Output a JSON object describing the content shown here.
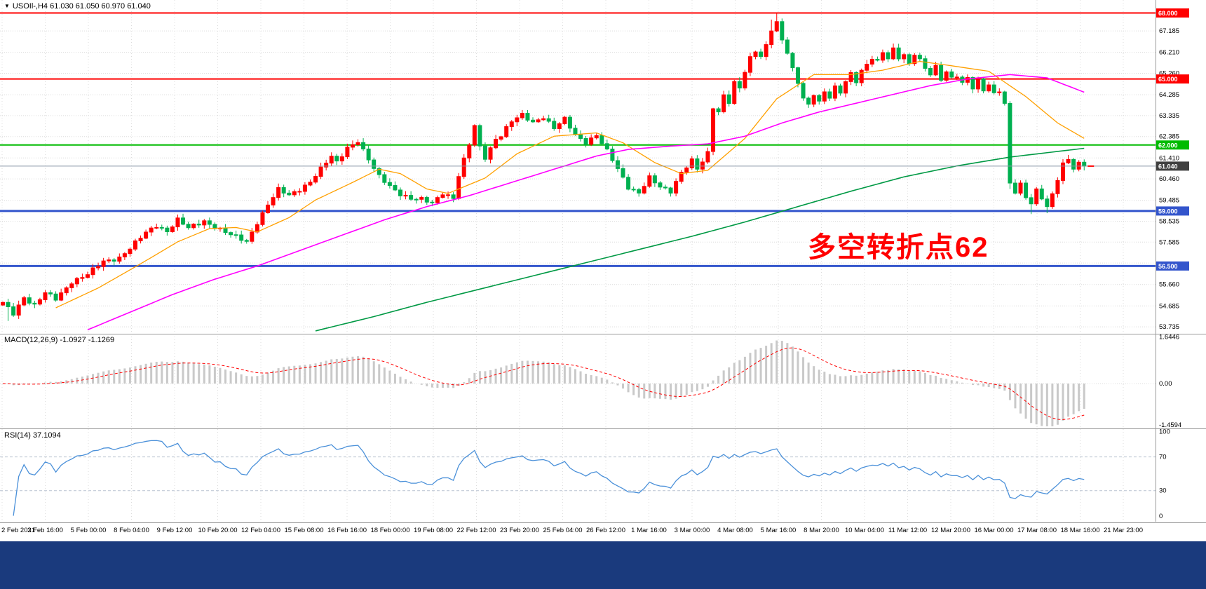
{
  "header": {
    "symbol_info": "USOIl-,H4 61.030 61.050 60.970 61.040"
  },
  "annotation": {
    "text": "多空转折点62"
  },
  "indicators": {
    "macd": {
      "label": "MACD(12,26,9) -1.0927 -1.1269"
    },
    "rsi": {
      "label": "RSI(14) 37.1094"
    }
  },
  "colors": {
    "bull": "#ff0000",
    "bear": "#00b050",
    "ma_fast": "#ffa000",
    "ma_mid": "#ff00ff",
    "ma_slow": "#009944",
    "grid": "#dcdcdc",
    "separator": "#9a9a9a",
    "macd_hist": "#c9c9c9",
    "macd_signal": "#ff0000",
    "rsi_line": "#4a90d9",
    "rsi_level": "#b9c2d0",
    "annotation": "#ff0000",
    "bottom_bar": "#1a3a7d",
    "current_price_bg": "#404040",
    "current_price_line": "#8a98a8"
  },
  "chart_data": [
    {
      "type": "candlestick",
      "title": "USOIl-,H4",
      "current_ohlc": {
        "open": 61.03,
        "high": 61.05,
        "low": 60.97,
        "close": 61.04
      },
      "ylim": [
        53.42,
        68.59
      ],
      "y_grid_prices": [
        67.185,
        66.21,
        65.26,
        64.285,
        63.335,
        62.385,
        61.41,
        60.46,
        59.485,
        58.535,
        57.585,
        56.635,
        55.66,
        54.685,
        53.735
      ],
      "y_tick_labels": [
        "67.185",
        "66.210",
        "65.260",
        "64.285",
        "63.335",
        "62.385",
        "61.410",
        "60.460",
        "59.485",
        "58.535",
        "57.585",
        "55.660",
        "54.685",
        "53.735"
      ],
      "x_ticks": [
        "2 Feb 2021",
        "3 Feb 16:00",
        "5 Feb 00:00",
        "8 Feb 04:00",
        "9 Feb 12:00",
        "10 Feb 20:00",
        "12 Feb 04:00",
        "15 Feb 08:00",
        "16 Feb 16:00",
        "18 Feb 00:00",
        "19 Feb 08:00",
        "22 Feb 12:00",
        "23 Feb 20:00",
        "25 Feb 04:00",
        "26 Feb 12:00",
        "1 Mar 16:00",
        "3 Mar 00:00",
        "4 Mar 08:00",
        "5 Mar 16:00",
        "8 Mar 20:00",
        "10 Mar 04:00",
        "11 Mar 12:00",
        "12 Mar 20:00",
        "16 Mar 00:00",
        "17 Mar 08:00",
        "18 Mar 16:00",
        "21 Mar 23:00"
      ],
      "hlines": [
        {
          "price": 68.0,
          "label": "68.000",
          "color": "#ff0000",
          "width": 2
        },
        {
          "price": 65.0,
          "label": "65.000",
          "color": "#ff0000",
          "width": 2
        },
        {
          "price": 62.0,
          "label": "62.000",
          "color": "#00bb00",
          "width": 2
        },
        {
          "price": 59.0,
          "label": "59.000",
          "color": "#3355cc",
          "width": 3
        },
        {
          "price": 56.5,
          "label": "56.500",
          "color": "#3355cc",
          "width": 3
        }
      ],
      "current_price": {
        "price": 61.04,
        "label": "61.040"
      },
      "candles": {
        "count": 205,
        "last_close": 61.04,
        "close_anchors": [
          [
            0,
            54.8
          ],
          [
            2,
            54.35
          ],
          [
            4,
            55.1
          ],
          [
            6,
            54.7
          ],
          [
            8,
            55.25
          ],
          [
            10,
            55.0
          ],
          [
            13,
            55.8
          ],
          [
            16,
            56.1
          ],
          [
            19,
            56.7
          ],
          [
            22,
            56.9
          ],
          [
            24,
            57.3
          ],
          [
            27,
            58.0
          ],
          [
            29,
            58.35
          ],
          [
            31,
            58.1
          ],
          [
            33,
            58.6
          ],
          [
            35,
            58.2
          ],
          [
            38,
            58.55
          ],
          [
            40,
            58.3
          ],
          [
            43,
            57.9
          ],
          [
            46,
            57.6
          ],
          [
            48,
            58.5
          ],
          [
            50,
            59.3
          ],
          [
            52,
            59.95
          ],
          [
            54,
            59.7
          ],
          [
            56,
            60.0
          ],
          [
            58,
            60.35
          ],
          [
            60,
            60.9
          ],
          [
            62,
            61.45
          ],
          [
            63,
            61.2
          ],
          [
            65,
            61.9
          ],
          [
            67,
            62.2
          ],
          [
            68,
            61.75
          ],
          [
            70,
            60.9
          ],
          [
            71,
            60.55
          ],
          [
            73,
            60.15
          ],
          [
            75,
            59.8
          ],
          [
            77,
            59.55
          ],
          [
            79,
            59.5
          ],
          [
            81,
            59.35
          ],
          [
            83,
            59.85
          ],
          [
            85,
            59.6
          ],
          [
            86,
            60.6
          ],
          [
            88,
            62.0
          ],
          [
            89,
            62.85
          ],
          [
            90,
            61.9
          ],
          [
            91,
            61.45
          ],
          [
            93,
            62.3
          ],
          [
            94,
            62.45
          ],
          [
            96,
            63.05
          ],
          [
            98,
            63.35
          ],
          [
            100,
            63.05
          ],
          [
            102,
            63.3
          ],
          [
            104,
            62.75
          ],
          [
            106,
            63.15
          ],
          [
            108,
            62.45
          ],
          [
            110,
            62.15
          ],
          [
            112,
            62.45
          ],
          [
            114,
            61.7
          ],
          [
            116,
            60.9
          ],
          [
            118,
            60.1
          ],
          [
            120,
            59.85
          ],
          [
            122,
            60.5
          ],
          [
            124,
            60.05
          ],
          [
            126,
            59.9
          ],
          [
            128,
            60.8
          ],
          [
            130,
            61.3
          ],
          [
            131,
            60.9
          ],
          [
            132,
            61.2
          ],
          [
            133,
            61.6
          ],
          [
            134,
            63.7
          ],
          [
            135,
            63.5
          ],
          [
            136,
            64.3
          ],
          [
            137,
            64.0
          ],
          [
            138,
            64.85
          ],
          [
            139,
            64.6
          ],
          [
            140,
            65.3
          ],
          [
            141,
            65.9
          ],
          [
            142,
            66.25
          ],
          [
            143,
            66.0
          ],
          [
            144,
            66.55
          ],
          [
            145,
            67.3
          ],
          [
            146,
            67.6
          ],
          [
            147,
            66.8
          ],
          [
            148,
            66.2
          ],
          [
            149,
            65.4
          ],
          [
            150,
            64.8
          ],
          [
            151,
            64.1
          ],
          [
            152,
            63.8
          ],
          [
            153,
            64.35
          ],
          [
            154,
            64.0
          ],
          [
            155,
            64.45
          ],
          [
            156,
            64.2
          ],
          [
            157,
            64.6
          ],
          [
            158,
            64.35
          ],
          [
            159,
            64.85
          ],
          [
            160,
            65.2
          ],
          [
            161,
            64.9
          ],
          [
            162,
            65.4
          ],
          [
            163,
            65.7
          ],
          [
            164,
            66.0
          ],
          [
            165,
            65.8
          ],
          [
            166,
            66.2
          ],
          [
            167,
            65.9
          ],
          [
            168,
            66.3
          ],
          [
            169,
            65.95
          ],
          [
            170,
            66.1
          ],
          [
            171,
            65.7
          ],
          [
            172,
            66.2
          ],
          [
            173,
            65.9
          ],
          [
            174,
            65.5
          ],
          [
            175,
            65.2
          ],
          [
            176,
            65.5
          ],
          [
            177,
            64.95
          ],
          [
            178,
            65.3
          ],
          [
            179,
            65.05
          ],
          [
            180,
            65.2
          ],
          [
            181,
            64.85
          ],
          [
            182,
            65.1
          ],
          [
            183,
            64.6
          ],
          [
            184,
            64.9
          ],
          [
            185,
            64.45
          ],
          [
            186,
            64.7
          ],
          [
            187,
            64.3
          ],
          [
            188,
            64.5
          ],
          [
            189,
            63.9
          ],
          [
            190,
            60.3
          ],
          [
            191,
            59.9
          ],
          [
            192,
            60.2
          ],
          [
            193,
            59.6
          ],
          [
            194,
            59.3
          ],
          [
            195,
            59.9
          ],
          [
            196,
            59.6
          ],
          [
            197,
            59.2
          ],
          [
            198,
            59.8
          ],
          [
            199,
            60.5
          ],
          [
            200,
            61.15
          ],
          [
            201,
            61.35
          ],
          [
            202,
            60.9
          ],
          [
            203,
            61.1
          ],
          [
            204,
            61.04
          ]
        ],
        "wick_overrides": [
          {
            "i": 1,
            "low": 54.0
          },
          {
            "i": 145,
            "high": 67.7
          },
          {
            "i": 146,
            "high": 67.98
          },
          {
            "i": 190,
            "low": 60.0
          },
          {
            "i": 194,
            "low": 58.86
          },
          {
            "i": 197,
            "low": 58.9
          },
          {
            "i": 201,
            "high": 61.55
          }
        ]
      },
      "moving_averages": [
        {
          "name": "ma-fast-orange",
          "color": "#ffa000",
          "width": 1.3,
          "anchors": [
            [
              10,
              54.6
            ],
            [
              18,
              55.5
            ],
            [
              26,
              56.6
            ],
            [
              33,
              57.6
            ],
            [
              39,
              58.2
            ],
            [
              44,
              58.25
            ],
            [
              48,
              58.05
            ],
            [
              54,
              58.7
            ],
            [
              59,
              59.5
            ],
            [
              66,
              60.3
            ],
            [
              71,
              60.9
            ],
            [
              75,
              60.7
            ],
            [
              80,
              60.0
            ],
            [
              84,
              59.8
            ],
            [
              91,
              60.5
            ],
            [
              97,
              61.6
            ],
            [
              104,
              62.4
            ],
            [
              112,
              62.55
            ],
            [
              117,
              62.1
            ],
            [
              123,
              61.2
            ],
            [
              128,
              60.7
            ],
            [
              133,
              60.85
            ],
            [
              140,
              62.3
            ],
            [
              146,
              64.1
            ],
            [
              153,
              65.2
            ],
            [
              160,
              65.2
            ],
            [
              166,
              65.4
            ],
            [
              173,
              65.8
            ],
            [
              179,
              65.6
            ],
            [
              186,
              65.35
            ],
            [
              193,
              64.2
            ],
            [
              199,
              63.0
            ],
            [
              204,
              62.3
            ]
          ]
        },
        {
          "name": "ma-mid-magenta",
          "color": "#ff00ff",
          "width": 1.6,
          "anchors": [
            [
              16,
              53.6
            ],
            [
              24,
              54.4
            ],
            [
              32,
              55.2
            ],
            [
              40,
              55.9
            ],
            [
              48,
              56.5
            ],
            [
              56,
              57.2
            ],
            [
              64,
              57.9
            ],
            [
              72,
              58.6
            ],
            [
              80,
              59.2
            ],
            [
              88,
              59.7
            ],
            [
              96,
              60.3
            ],
            [
              104,
              60.9
            ],
            [
              112,
              61.5
            ],
            [
              118,
              61.8
            ],
            [
              126,
              61.95
            ],
            [
              133,
              62.05
            ],
            [
              140,
              62.4
            ],
            [
              147,
              63.0
            ],
            [
              154,
              63.5
            ],
            [
              161,
              63.9
            ],
            [
              168,
              64.3
            ],
            [
              175,
              64.7
            ],
            [
              182,
              65.0
            ],
            [
              190,
              65.2
            ],
            [
              197,
              65.05
            ],
            [
              204,
              64.4
            ]
          ]
        },
        {
          "name": "ma-slow-green",
          "color": "#009944",
          "width": 1.6,
          "anchors": [
            [
              59,
              53.55
            ],
            [
              70,
              54.2
            ],
            [
              80,
              54.85
            ],
            [
              90,
              55.45
            ],
            [
              100,
              56.05
            ],
            [
              110,
              56.65
            ],
            [
              120,
              57.25
            ],
            [
              130,
              57.85
            ],
            [
              140,
              58.5
            ],
            [
              150,
              59.2
            ],
            [
              160,
              59.9
            ],
            [
              170,
              60.55
            ],
            [
              180,
              61.05
            ],
            [
              190,
              61.45
            ],
            [
              204,
              61.85
            ]
          ]
        }
      ],
      "annotation": {
        "text": "多空转折点62",
        "near_price": 57.8
      }
    },
    {
      "type": "macd-histogram",
      "label": "MACD(12,26,9)",
      "values": [
        -1.0927,
        -1.1269
      ],
      "y_ticks": [
        "1.6446",
        "0.00",
        "-1.4594"
      ],
      "derived_from": "candlestick closes with EMA 12/26 and signal EMA 9"
    },
    {
      "type": "rsi-line",
      "label": "RSI(14)",
      "value": 37.1094,
      "y_ticks": [
        "100",
        "70",
        "30",
        "0"
      ],
      "levels": [
        70,
        30
      ]
    }
  ]
}
